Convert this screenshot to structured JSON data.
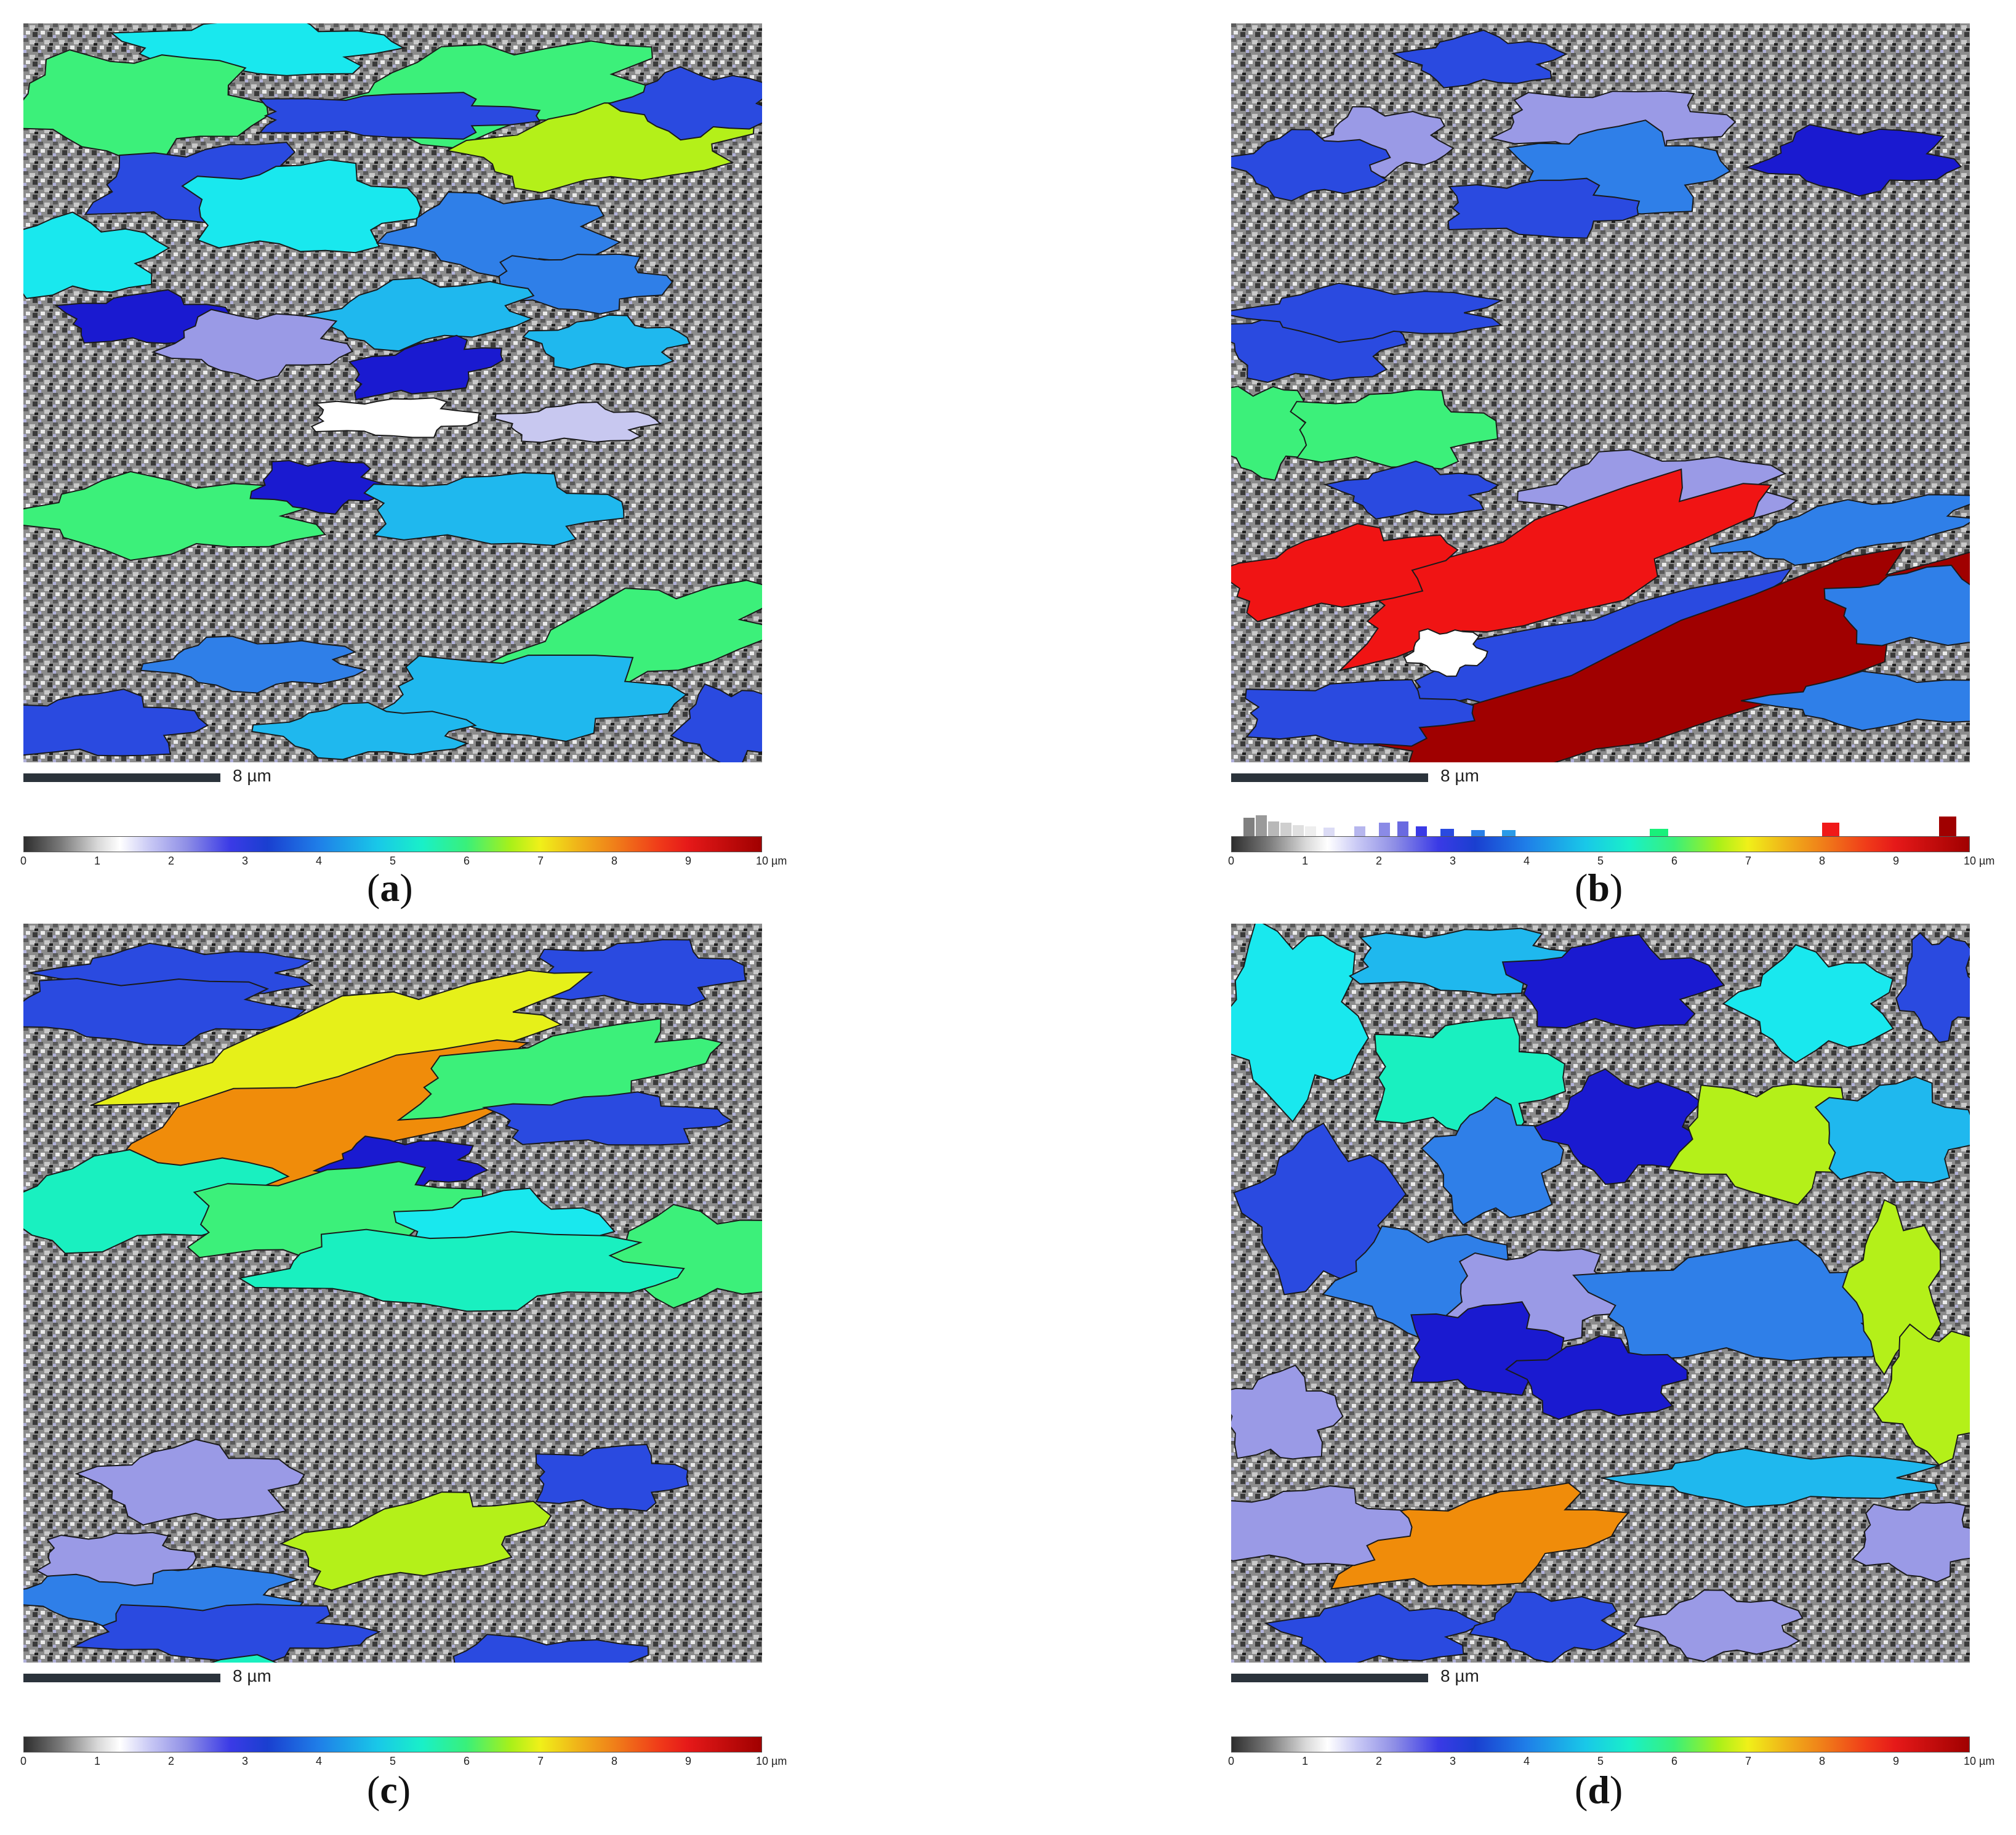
{
  "panels": [
    {
      "id": "a",
      "caption_letter": "a",
      "scale_label": "8 µm",
      "legend_ticks": [
        "0",
        "1",
        "2",
        "3",
        "4",
        "5",
        "6",
        "7",
        "8",
        "9",
        "10 µm"
      ],
      "has_histogram": false,
      "credit": ""
    },
    {
      "id": "b",
      "caption_letter": "b",
      "scale_label": "8 µm",
      "legend_ticks": [
        "0",
        "1",
        "2",
        "3",
        "4",
        "5",
        "6",
        "7",
        "8",
        "9",
        "10 µm"
      ],
      "has_histogram": true,
      "credit": ""
    },
    {
      "id": "c",
      "caption_letter": "c",
      "scale_label": "8 µm",
      "legend_ticks": [
        "0",
        "1",
        "2",
        "3",
        "4",
        "5",
        "6",
        "7",
        "8",
        "9",
        "10 µm"
      ],
      "has_histogram": false,
      "credit": ""
    },
    {
      "id": "d",
      "caption_letter": "d",
      "scale_label": "8 µm",
      "legend_ticks": [
        "0",
        "1",
        "2",
        "3",
        "4",
        "5",
        "6",
        "7",
        "8",
        "9",
        "10 µm"
      ],
      "has_histogram": false,
      "credit": ""
    }
  ],
  "colors": {
    "scalebar": "#2b333b",
    "grain_palette": [
      "#1a1aa0",
      "#2a3ae0",
      "#3f7fe8",
      "#19b8e8",
      "#19e8e8",
      "#19f0c0",
      "#39f07a",
      "#a9f019",
      "#f0f019",
      "#f09a19",
      "#f01919",
      "#a00000",
      "#9a9ae6",
      "#c8c8f0",
      "#ffffff",
      "#d0d0d0",
      "#9a9a9a",
      "#5a5a5a",
      "#202020"
    ]
  }
}
